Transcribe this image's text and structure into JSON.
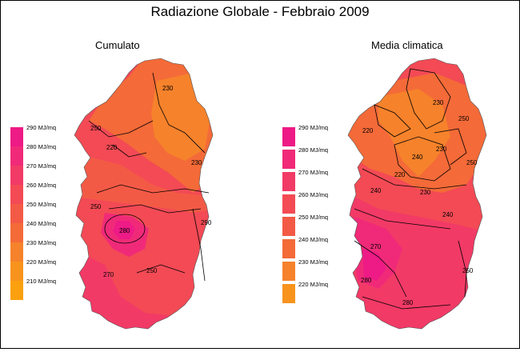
{
  "title": "Radiazione Globale - Febbraio 2009",
  "maps": {
    "left": {
      "title": "Cumulato",
      "legend": [
        "290 MJ/mq",
        "280 MJ/mq",
        "270 MJ/mq",
        "260 MJ/mq",
        "250 MJ/mq",
        "240 MJ/mq",
        "230 MJ/mq",
        "220 MJ/mq",
        "210 MJ/mq"
      ],
      "contour_labels": [
        "230",
        "250",
        "220",
        "230",
        "250",
        "270",
        "290",
        "280",
        "250"
      ]
    },
    "right": {
      "title": "Media climatica",
      "legend": [
        "290 MJ/mq",
        "280 MJ/mq",
        "270 MJ/mq",
        "260 MJ/mq",
        "250 MJ/mq",
        "240 MJ/mq",
        "230 MJ/mq",
        "220 MJ/mq"
      ],
      "contour_labels": [
        "230",
        "250",
        "220",
        "230",
        "240",
        "250",
        "220",
        "240",
        "230",
        "240",
        "270",
        "250",
        "280",
        "280"
      ]
    }
  },
  "colors": {
    "c290": "#ee1a86",
    "c280": "#f02a78",
    "c270": "#f23a66",
    "c260": "#f34a55",
    "c250": "#f35a46",
    "c240": "#f46a38",
    "c230": "#f6822b",
    "c220": "#f8931e",
    "c210": "#fba00f"
  }
}
